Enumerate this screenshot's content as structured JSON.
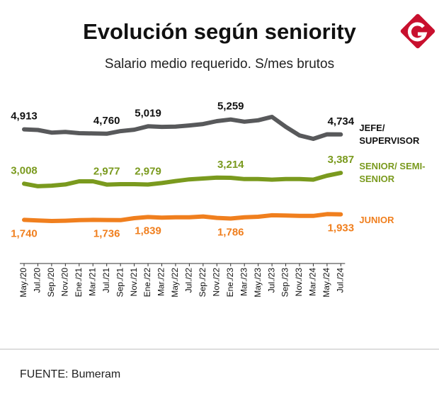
{
  "chart_data": {
    "type": "line",
    "title": "Evolución según seniority",
    "subtitle": "Salario medio requerido. S/mes brutos",
    "source": "FUENTE: Bumeram",
    "categories": [
      "May./20",
      "Jul./20",
      "Sep./20",
      "Nov./20",
      "Ene./21",
      "Mar./21",
      "Jul./21",
      "Sep./21",
      "Nov./21",
      "Ene./22",
      "Mar./22",
      "May./22",
      "Jul./22",
      "Sep./22",
      "Nov./22",
      "Ene./23",
      "Mar./23",
      "May./23",
      "Jul./23",
      "Sep./23",
      "Nov./23",
      "Mar./24",
      "May./24",
      "Jul./24"
    ],
    "series": [
      {
        "name": "JEFE/ SUPERVISOR",
        "color": "#58595b",
        "values": [
          4913,
          4890,
          4800,
          4820,
          4780,
          4770,
          4760,
          4850,
          4900,
          5019,
          5000,
          5010,
          5050,
          5100,
          5200,
          5259,
          5180,
          5230,
          5350,
          5000,
          4700,
          4580,
          4740,
          4734
        ],
        "value_labels": [
          "4,913",
          null,
          null,
          null,
          null,
          null,
          "4,760",
          null,
          null,
          "5,019",
          null,
          null,
          null,
          null,
          null,
          "5,259",
          null,
          null,
          null,
          null,
          null,
          null,
          null,
          "4,734"
        ]
      },
      {
        "name": "SENIOR/ SEMI-SENIOR",
        "color": "#7a9a1e",
        "values": [
          3008,
          2920,
          2940,
          2980,
          3090,
          3090,
          2977,
          2990,
          2990,
          2979,
          3030,
          3100,
          3160,
          3190,
          3220,
          3214,
          3170,
          3170,
          3150,
          3170,
          3170,
          3150,
          3290,
          3387
        ],
        "value_labels": [
          "3,008",
          null,
          null,
          null,
          null,
          null,
          "2,977",
          null,
          null,
          "2,979",
          null,
          null,
          null,
          null,
          null,
          "3,214",
          null,
          null,
          null,
          null,
          null,
          null,
          null,
          "3,387"
        ]
      },
      {
        "name": "JUNIOR",
        "color": "#f07f1e",
        "values": [
          1740,
          1720,
          1700,
          1710,
          1730,
          1740,
          1736,
          1730,
          1800,
          1839,
          1820,
          1830,
          1830,
          1860,
          1810,
          1786,
          1830,
          1850,
          1900,
          1890,
          1880,
          1880,
          1940,
          1933
        ],
        "value_labels": [
          "1,740",
          null,
          null,
          null,
          null,
          null,
          "1,736",
          null,
          null,
          "1,839",
          null,
          null,
          null,
          null,
          null,
          "1,786",
          null,
          null,
          null,
          null,
          null,
          null,
          null,
          "1,933"
        ]
      }
    ]
  }
}
